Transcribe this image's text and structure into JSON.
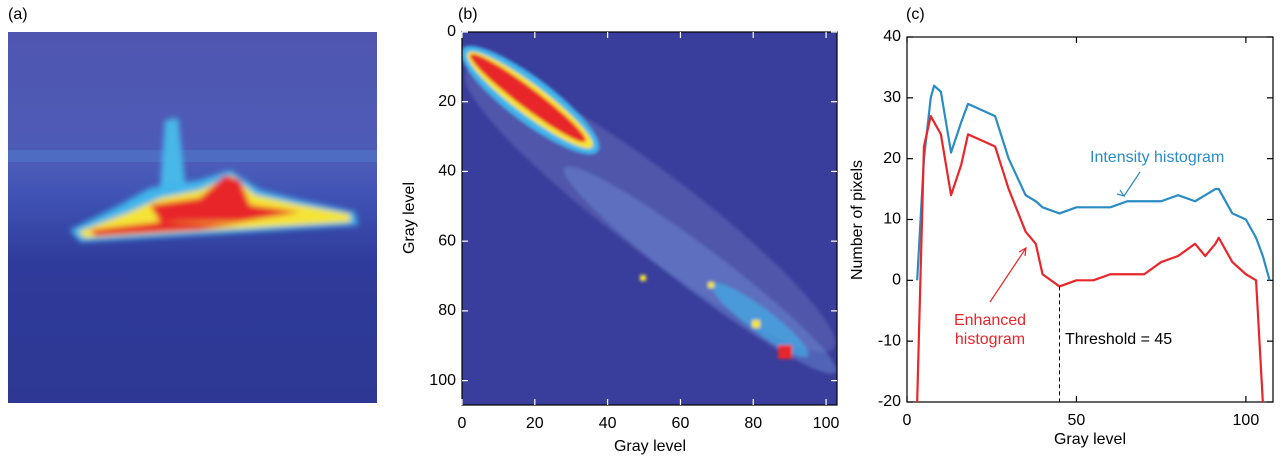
{
  "chart_data": [
    {
      "type": "image",
      "label": "(a)"
    },
    {
      "type": "heatmap",
      "label": "(b)",
      "xlabel": "Gray level",
      "ylabel": "Gray level",
      "xlim": [
        0,
        103
      ],
      "xticks": [
        0,
        20,
        40,
        60,
        80,
        100
      ],
      "ylim": [
        0,
        107
      ],
      "yticks": [
        0,
        20,
        40,
        60,
        80,
        100
      ],
      "y_inverted": true
    },
    {
      "type": "line",
      "label": "(c)",
      "xlabel": "Gray level",
      "ylabel": "Number of pixels",
      "xlim": [
        0,
        108
      ],
      "xticks": [
        0,
        50,
        100
      ],
      "ylim": [
        -20,
        40
      ],
      "yticks": [
        -20,
        -10,
        0,
        10,
        20,
        30,
        40
      ],
      "x": [
        0,
        3,
        5,
        7,
        8,
        10,
        13,
        16,
        18,
        22,
        26,
        30,
        35,
        38,
        40,
        45,
        50,
        55,
        60,
        65,
        70,
        75,
        80,
        85,
        88,
        91,
        92,
        96,
        100,
        103,
        105,
        107
      ],
      "series": [
        {
          "name": "Intensity histogram",
          "color": "#2a8cc4",
          "values": [
            null,
            0,
            20,
            30,
            32,
            31,
            21,
            26,
            29,
            28,
            27,
            20,
            14,
            13,
            12,
            11,
            12,
            12,
            12,
            13,
            13,
            13,
            14,
            13,
            14,
            15,
            15,
            11,
            10,
            7,
            4,
            0
          ]
        },
        {
          "name": "Enhanced histogram",
          "color": "#e8262b",
          "values": [
            null,
            -20,
            22,
            27,
            26,
            24,
            14,
            19,
            24,
            23,
            22,
            15,
            8,
            6,
            1,
            -1,
            0,
            0,
            1,
            1,
            1,
            3,
            4,
            6,
            4,
            6,
            7,
            3,
            1,
            0,
            -20,
            null
          ]
        }
      ],
      "threshold": {
        "value": 45,
        "label": "Threshold = 45"
      }
    }
  ]
}
